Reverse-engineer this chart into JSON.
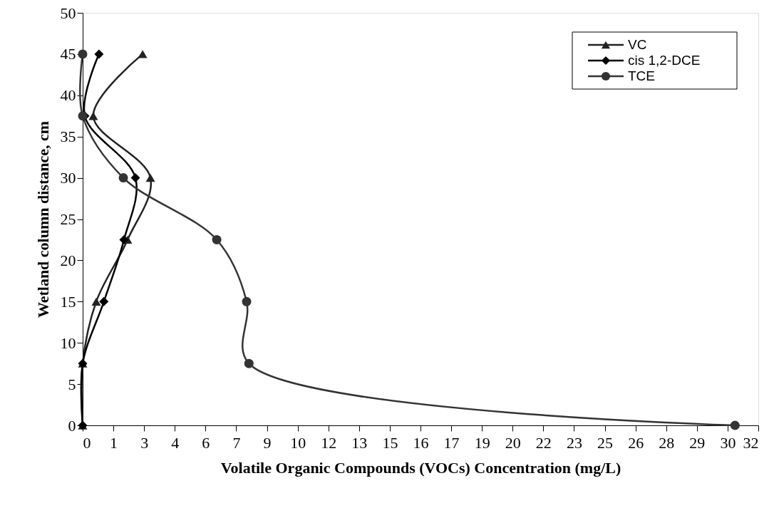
{
  "chart_data": {
    "type": "line",
    "xlabel": "Volatile Organic Compounds (VOCs) Concentration  (mg/L)",
    "ylabel": "Wetland column distance, cm",
    "xlim": [
      0,
      31.9
    ],
    "xticks": [
      0,
      {
        "value": 1.45,
        "label": "1"
      },
      {
        "value": 2.9,
        "label": "3"
      },
      {
        "value": 4.35,
        "label": "4"
      },
      {
        "value": 5.8,
        "label": "6"
      },
      {
        "value": 7.25,
        "label": "7"
      },
      {
        "value": 8.7,
        "label": "9"
      },
      {
        "value": 10.15,
        "label": "10"
      },
      {
        "value": 11.6,
        "label": "12"
      },
      {
        "value": 13.05,
        "label": "13"
      },
      {
        "value": 14.5,
        "label": "15"
      },
      {
        "value": 15.95,
        "label": "16"
      },
      {
        "value": 17.4,
        "label": "17"
      },
      {
        "value": 18.85,
        "label": "19"
      },
      {
        "value": 20.3,
        "label": "20"
      },
      {
        "value": 21.75,
        "label": "22"
      },
      {
        "value": 23.2,
        "label": "23"
      },
      {
        "value": 24.65,
        "label": "25"
      },
      {
        "value": 26.1,
        "label": "26"
      },
      {
        "value": 27.55,
        "label": "28"
      },
      {
        "value": 29,
        "label": "29"
      },
      {
        "value": 30.45,
        "label": "30"
      },
      {
        "value": 31.9,
        "label": "32"
      }
    ],
    "ylim": [
      0,
      50
    ],
    "yticks": [
      0,
      5,
      10,
      15,
      20,
      25,
      30,
      35,
      40,
      45,
      50
    ],
    "grid": false,
    "legend": "top right",
    "line_style": "solid",
    "series": [
      {
        "name": "VC",
        "color": "#222222",
        "marker": "triangle",
        "x": [
          0,
          0,
          0.64,
          2.12,
          3.2,
          0.5,
          2.83
        ],
        "values": [
          0,
          7.5,
          15,
          22.5,
          30,
          37.5,
          45
        ]
      },
      {
        "name": "cis 1,2-DCE",
        "color": "#000000",
        "marker": "diamond",
        "x": [
          0,
          0,
          1.0,
          1.95,
          2.49,
          0.1,
          0.77
        ],
        "values": [
          0,
          7.5,
          15,
          22.5,
          30,
          37.5,
          45
        ]
      },
      {
        "name": "TCE",
        "color": "#333333",
        "marker": "circle",
        "x": [
          30.8,
          7.85,
          7.74,
          6.33,
          1.92,
          0,
          0
        ],
        "values": [
          0,
          7.5,
          15,
          22.5,
          30,
          37.5,
          45
        ]
      }
    ]
  }
}
